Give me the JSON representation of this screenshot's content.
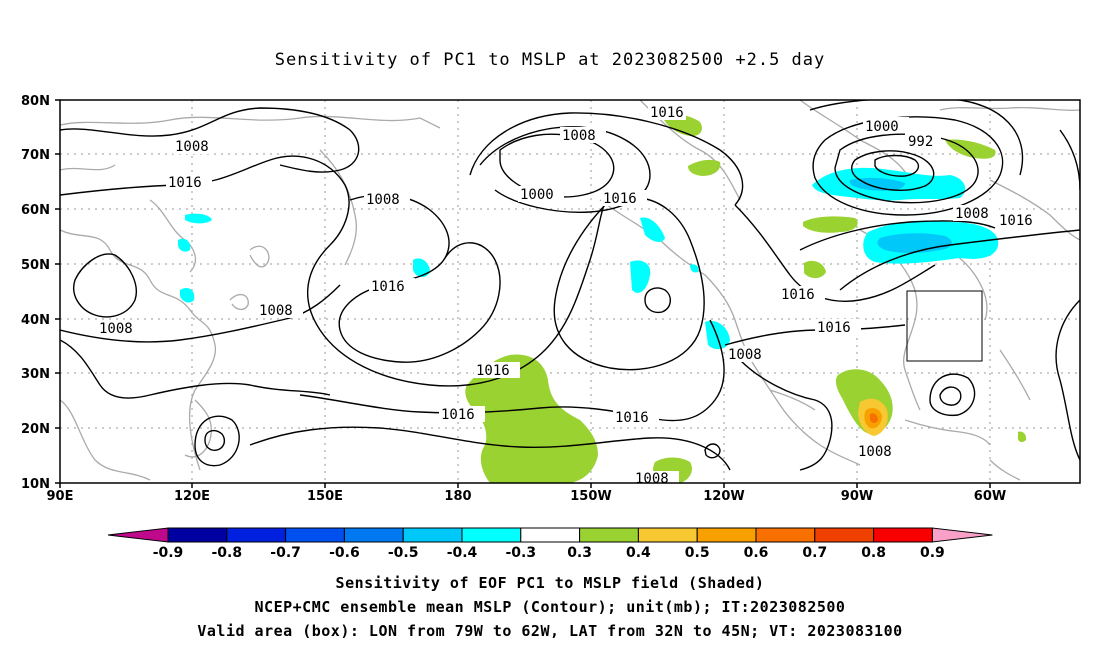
{
  "map": {
    "title": "Sensitivity of PC1 to MSLP at 2023082500 +2.5 day",
    "lat_ticks": [
      "80N",
      "70N",
      "60N",
      "50N",
      "40N",
      "30N",
      "20N",
      "10N"
    ],
    "lon_ticks": [
      "90E",
      "120E",
      "150E",
      "180",
      "150W",
      "120W",
      "90W",
      "60W"
    ],
    "contour_labels": [
      "1016",
      "1008",
      "1000",
      "992",
      "1008",
      "1016",
      "1008",
      "1016",
      "1008",
      "1000",
      "1016",
      "1008",
      "1008",
      "1016",
      "1016",
      "1016",
      "1016",
      "1016",
      "1008",
      "1016",
      "1008",
      "1008",
      "1008"
    ],
    "box": {
      "lon_range": [
        "79W",
        "62W"
      ],
      "lat_range": [
        "32N",
        "45N"
      ]
    }
  },
  "colorbar": {
    "labels": [
      "-0.9",
      "-0.8",
      "-0.7",
      "-0.6",
      "-0.5",
      "-0.4",
      "-0.3",
      "0.3",
      "0.4",
      "0.5",
      "0.6",
      "0.7",
      "0.8",
      "0.9"
    ],
    "colors": [
      "#0000a0",
      "#0020e0",
      "#0050f0",
      "#0078f0",
      "#00c8f8",
      "#00ffff",
      "#ffffff",
      "#9ad232",
      "#f8c832",
      "#f8a000",
      "#f87000",
      "#f04000",
      "#f80000"
    ],
    "low_arrow_color": "#c0088c",
    "high_arrow_color": "#f8a0c8"
  },
  "caption": {
    "line1": "Sensitivity of EOF PC1 to MSLP field (Shaded)",
    "line2": "NCEP+CMC ensemble mean MSLP (Contour); unit(mb); IT:2023082500",
    "line3": "Valid area (box): LON from 79W to 62W, LAT from 32N to 45N; VT: 2023083100"
  }
}
